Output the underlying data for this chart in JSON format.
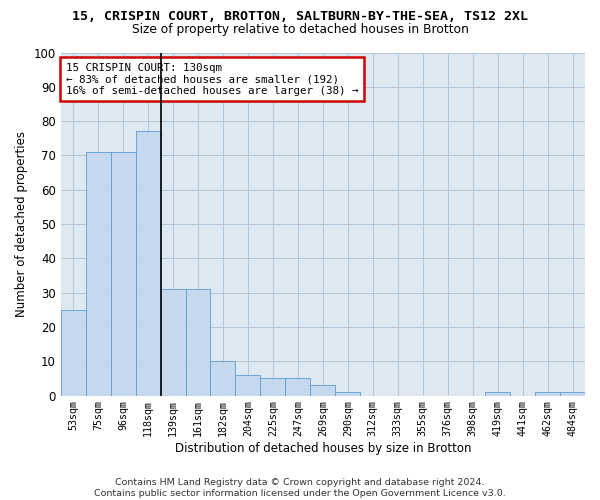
{
  "title1": "15, CRISPIN COURT, BROTTON, SALTBURN-BY-THE-SEA, TS12 2XL",
  "title2": "Size of property relative to detached houses in Brotton",
  "xlabel": "Distribution of detached houses by size in Brotton",
  "ylabel": "Number of detached properties",
  "categories": [
    "53sqm",
    "75sqm",
    "96sqm",
    "118sqm",
    "139sqm",
    "161sqm",
    "182sqm",
    "204sqm",
    "225sqm",
    "247sqm",
    "269sqm",
    "290sqm",
    "312sqm",
    "333sqm",
    "355sqm",
    "376sqm",
    "398sqm",
    "419sqm",
    "441sqm",
    "462sqm",
    "484sqm"
  ],
  "values": [
    25,
    71,
    71,
    77,
    31,
    31,
    10,
    6,
    5,
    5,
    3,
    1,
    0,
    0,
    0,
    0,
    0,
    1,
    0,
    1,
    1
  ],
  "bar_color": "#c5d8ed",
  "bar_edge_color": "#5b9bd5",
  "marker_label_line1": "15 CRISPIN COURT: 130sqm",
  "marker_label_line2": "← 83% of detached houses are smaller (192)",
  "marker_label_line3": "16% of semi-detached houses are larger (38) →",
  "annotation_box_color": "#ffffff",
  "annotation_border_color": "#cc0000",
  "vline_x_index": 3,
  "ylim": [
    0,
    100
  ],
  "yticks": [
    0,
    10,
    20,
    30,
    40,
    50,
    60,
    70,
    80,
    90,
    100
  ],
  "grid_color": "#aec6d8",
  "bg_color": "#dde8f0",
  "footer": "Contains HM Land Registry data © Crown copyright and database right 2024.\nContains public sector information licensed under the Open Government Licence v3.0."
}
